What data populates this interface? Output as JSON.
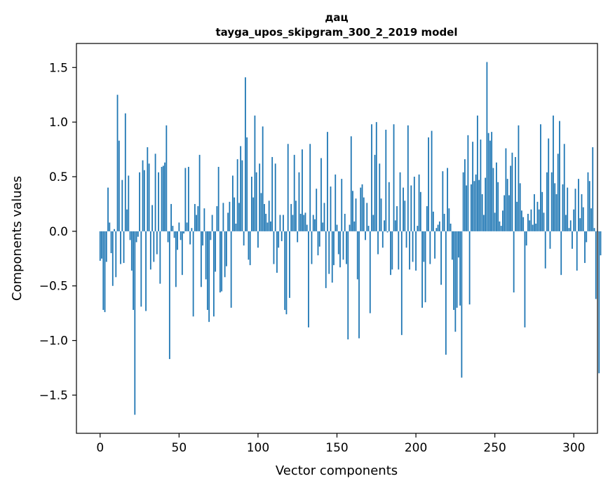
{
  "chart_data": {
    "type": "bar",
    "title": "дац",
    "subtitle": "tayga_upos_skipgram_300_2_2019 model",
    "xlabel": "Vector components",
    "ylabel": "Components values",
    "xlim": [
      -15,
      315
    ],
    "ylim": [
      -1.85,
      1.72
    ],
    "xticks": [
      0,
      50,
      100,
      150,
      200,
      250,
      300
    ],
    "yticks": [
      -1.5,
      -1.0,
      -0.5,
      0.0,
      0.5,
      1.0,
      1.5
    ],
    "xtick_labels": [
      "0",
      "50",
      "100",
      "150",
      "200",
      "250",
      "300"
    ],
    "ytick_labels": [
      "−1.5",
      "−1.0",
      "−0.5",
      "0.0",
      "0.5",
      "1.0",
      "1.5"
    ],
    "grid": false,
    "bar_color": "#1f77b4",
    "values": [
      -0.27,
      -0.25,
      -0.72,
      -0.74,
      -0.28,
      0.4,
      0.08,
      -0.2,
      -0.5,
      0.02,
      -0.42,
      1.25,
      0.83,
      -0.3,
      0.47,
      -0.29,
      1.08,
      0.2,
      0.51,
      -0.08,
      -0.36,
      -0.72,
      -1.68,
      -0.1,
      -0.05,
      0.54,
      -0.69,
      0.65,
      0.56,
      -0.73,
      0.77,
      0.62,
      -0.35,
      0.24,
      -0.28,
      0.71,
      -0.21,
      0.54,
      -0.48,
      0.59,
      0.6,
      0.63,
      0.97,
      -0.1,
      -1.17,
      0.25,
      0.05,
      -0.06,
      -0.51,
      -0.17,
      0.08,
      -0.08,
      -0.4,
      -0.02,
      0.58,
      0.08,
      0.59,
      -0.12,
      0.03,
      -0.78,
      0.25,
      0.15,
      0.23,
      0.7,
      -0.51,
      -0.13,
      0.21,
      -0.44,
      -0.72,
      -0.83,
      -0.08,
      0.15,
      -0.78,
      -0.37,
      0.23,
      0.59,
      -0.56,
      -0.55,
      0.26,
      -0.42,
      -0.32,
      0.17,
      0.27,
      -0.7,
      0.51,
      0.31,
      0.07,
      0.66,
      0.26,
      0.78,
      0.65,
      -0.13,
      1.41,
      0.86,
      -0.26,
      -0.31,
      0.5,
      0.31,
      1.06,
      0.54,
      -0.15,
      0.62,
      0.35,
      0.96,
      0.25,
      0.16,
      0.08,
      0.28,
      0.09,
      0.68,
      -0.3,
      0.62,
      -0.38,
      -0.15,
      0.15,
      -0.09,
      0.15,
      -0.72,
      -0.76,
      0.8,
      -0.61,
      0.25,
      0.15,
      0.7,
      0.28,
      -0.1,
      0.54,
      0.16,
      0.75,
      0.15,
      0.17,
      0.06,
      -0.88,
      0.8,
      -0.3,
      0.15,
      0.11,
      0.39,
      -0.22,
      -0.14,
      0.67,
      0.08,
      0.26,
      -0.52,
      0.91,
      -0.39,
      0.41,
      -0.47,
      -0.31,
      0.52,
      0.06,
      -0.21,
      -0.33,
      0.48,
      -0.26,
      0.16,
      -0.3,
      -0.99,
      0.06,
      0.87,
      0.37,
      0.09,
      0.3,
      -0.44,
      -0.98,
      0.4,
      0.43,
      0.31,
      -0.08,
      0.26,
      0.05,
      -0.75,
      0.98,
      0.15,
      0.7,
      1.0,
      -0.21,
      0.62,
      0.3,
      -0.15,
      0.1,
      0.93,
      -0.01,
      0.45,
      -0.4,
      -0.35,
      0.98,
      0.1,
      0.23,
      -0.35,
      0.54,
      -0.95,
      0.4,
      0.28,
      -0.15,
      0.97,
      -0.35,
      0.42,
      -0.28,
      0.5,
      -0.36,
      0.05,
      0.52,
      0.36,
      -0.7,
      -0.28,
      -0.65,
      0.23,
      0.86,
      -0.3,
      0.92,
      0.18,
      -0.25,
      0.03,
      0.06,
      0.09,
      -0.49,
      0.55,
      0.16,
      -1.13,
      0.58,
      0.21,
      0.07,
      -0.26,
      -0.72,
      -0.92,
      -0.7,
      -0.24,
      -0.68,
      -1.34,
      0.54,
      0.66,
      0.42,
      0.88,
      -0.67,
      0.43,
      0.82,
      0.46,
      0.52,
      1.06,
      0.47,
      0.84,
      0.34,
      0.15,
      0.49,
      1.55,
      0.9,
      0.83,
      0.91,
      0.58,
      0.17,
      0.63,
      0.45,
      0.09,
      0.05,
      0.19,
      0.33,
      0.76,
      0.48,
      0.33,
      0.6,
      0.72,
      -0.56,
      0.68,
      0.27,
      0.97,
      0.44,
      0.19,
      0.13,
      -0.88,
      -0.13,
      0.16,
      0.1,
      0.2,
      0.06,
      0.34,
      0.07,
      0.27,
      0.2,
      0.98,
      0.36,
      0.17,
      -0.34,
      0.54,
      0.85,
      -0.16,
      0.54,
      1.06,
      0.44,
      0.34,
      0.71,
      1.01,
      -0.4,
      0.43,
      0.8,
      0.15,
      0.4,
      0.03,
      0.1,
      -0.16,
      0.2,
      0.39,
      -0.36,
      0.48,
      0.12,
      0.34,
      0.22,
      -0.29,
      -0.1,
      0.54,
      0.46,
      0.21,
      0.77,
      0.03,
      -0.62,
      0.0,
      -1.3,
      -0.22
    ]
  }
}
